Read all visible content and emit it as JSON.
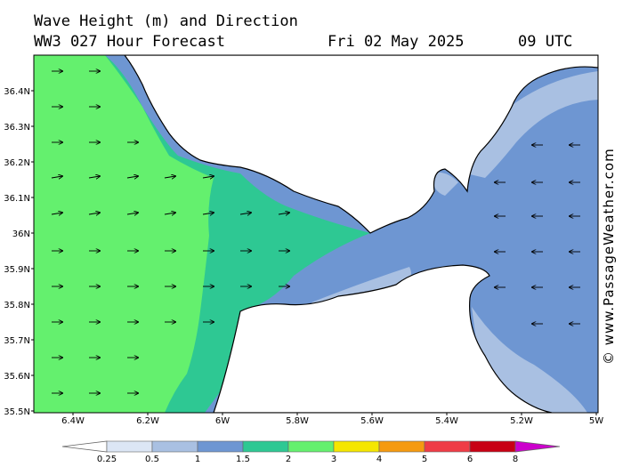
{
  "title": {
    "line1": "Wave Height (m) and Direction",
    "line2": "WW3 027 Hour Forecast",
    "date": "Fri 02 May 2025",
    "time": "09 UTC"
  },
  "axes": {
    "lat_labels": [
      "36.4N",
      "36.3N",
      "36.2N",
      "36.1N",
      "36N",
      "35.9N",
      "35.8N",
      "35.7N",
      "35.6N",
      "35.5N"
    ],
    "lon_labels": [
      "6.4W",
      "6.2W",
      "6W",
      "5.8W",
      "5.6W",
      "5.4W",
      "5.2W",
      "5W"
    ]
  },
  "legend": {
    "ticks": [
      "0.25",
      "0.5",
      "1",
      "1.5",
      "2",
      "3",
      "4",
      "5",
      "6",
      "8"
    ],
    "colors": [
      "#ffffff",
      "#dce6f5",
      "#a9c0e2",
      "#6e96d2",
      "#2ec893",
      "#64f06e",
      "#f5e600",
      "#f59a10",
      "#ef3c46",
      "#c80014",
      "#cc00cc"
    ]
  },
  "credit": "© www.PassageWeather.com",
  "colors": {
    "land": "#ffffff",
    "band_light": "#a9c0e2",
    "band_blue": "#6e96d2",
    "band_teal": "#2ec893",
    "band_green": "#64f06e"
  },
  "arrows_icon": "wave-direction-arrow-icon"
}
